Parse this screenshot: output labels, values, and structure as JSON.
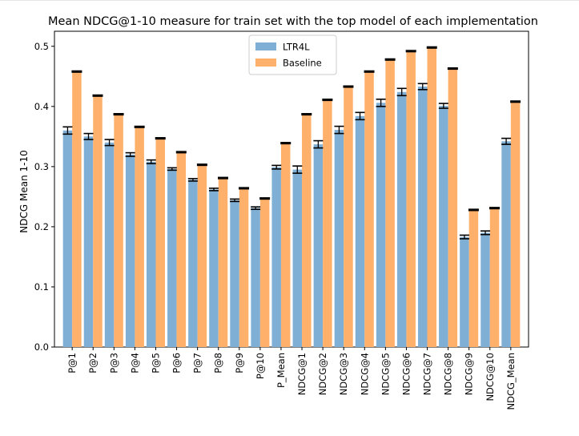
{
  "chart_data": {
    "type": "bar",
    "title": "Mean NDCG@1-10 measure for train set with the top model of each implementation",
    "xlabel": "",
    "ylabel": "NDCG Mean 1-10",
    "ylim": [
      0,
      0.5
    ],
    "yticks": [
      "0.0",
      "0.1",
      "0.2",
      "0.3",
      "0.4",
      "0.5"
    ],
    "grid": false,
    "legend_position": "top-center",
    "categories": [
      "P@1",
      "P@2",
      "P@3",
      "P@4",
      "P@5",
      "P@6",
      "P@7",
      "P@8",
      "P@9",
      "P@10",
      "P_Mean",
      "NDCG@1",
      "NDCG@2",
      "NDCG@3",
      "NDCG@4",
      "NDCG@5",
      "NDCG@6",
      "NDCG@7",
      "NDCG@8",
      "NDCG@9",
      "NDCG@10",
      "NDCG_Mean"
    ],
    "series": [
      {
        "name": "LTR4L",
        "color": "#7fafd4",
        "values": [
          0.36,
          0.35,
          0.34,
          0.32,
          0.308,
          0.296,
          0.278,
          0.262,
          0.244,
          0.231,
          0.299,
          0.295,
          0.337,
          0.361,
          0.384,
          0.406,
          0.424,
          0.433,
          0.401,
          0.183,
          0.19,
          0.342
        ],
        "errors": [
          0.006,
          0.005,
          0.005,
          0.003,
          0.003,
          0.002,
          0.002,
          0.002,
          0.002,
          0.002,
          0.003,
          0.006,
          0.006,
          0.006,
          0.006,
          0.006,
          0.006,
          0.005,
          0.004,
          0.003,
          0.003,
          0.005
        ]
      },
      {
        "name": "Baseline",
        "color": "#ffb06a",
        "values": [
          0.458,
          0.418,
          0.387,
          0.366,
          0.347,
          0.324,
          0.303,
          0.281,
          0.264,
          0.247,
          0.339,
          0.387,
          0.411,
          0.433,
          0.458,
          0.478,
          0.492,
          0.498,
          0.463,
          0.228,
          0.231,
          0.408
        ],
        "errors": [
          0.001,
          0.001,
          0.001,
          0.001,
          0.001,
          0.001,
          0.001,
          0.001,
          0.001,
          0.001,
          0.001,
          0.001,
          0.001,
          0.001,
          0.001,
          0.001,
          0.001,
          0.001,
          0.001,
          0.001,
          0.001,
          0.001
        ]
      }
    ]
  }
}
